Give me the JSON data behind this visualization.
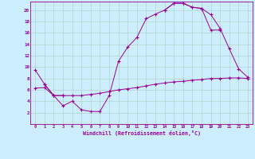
{
  "background_color": "#cceeff",
  "grid_color": "#aaccbb",
  "line_color": "#990099",
  "xlim": [
    -0.5,
    23.5
  ],
  "ylim": [
    0,
    21.5
  ],
  "xlabel": "Windchill (Refroidissement éolien,°C)",
  "xticks": [
    0,
    1,
    2,
    3,
    4,
    5,
    6,
    7,
    8,
    9,
    10,
    11,
    12,
    13,
    14,
    15,
    16,
    17,
    18,
    19,
    20,
    21,
    22,
    23
  ],
  "yticks": [
    2,
    4,
    6,
    8,
    10,
    12,
    14,
    16,
    18,
    20
  ],
  "series1_x": [
    0,
    1,
    2,
    3,
    4,
    5,
    6,
    7,
    8,
    9,
    10,
    11,
    12,
    13,
    14,
    15,
    16,
    17,
    18,
    19,
    20
  ],
  "series1_y": [
    9.5,
    7.0,
    5.0,
    3.2,
    4.0,
    2.5,
    2.2,
    2.2,
    5.0,
    11.0,
    13.5,
    15.2,
    18.5,
    19.3,
    20.0,
    21.2,
    21.2,
    20.5,
    20.3,
    16.5,
    16.5
  ],
  "series2_x": [
    14,
    15,
    16,
    17,
    18,
    19,
    20,
    21,
    22,
    23
  ],
  "series2_y": [
    20.0,
    21.2,
    21.2,
    20.5,
    20.3,
    19.2,
    16.8,
    13.2,
    9.7,
    8.2
  ],
  "series3_x": [
    1,
    2,
    3
  ],
  "series3_y": [
    7.0,
    5.0,
    5.0
  ],
  "series4_x": [
    0,
    1,
    2,
    3,
    4,
    5,
    6,
    7,
    8,
    9,
    10,
    11,
    12,
    13,
    14,
    15,
    16,
    17,
    18,
    19,
    20,
    21,
    22,
    23
  ],
  "series4_y": [
    6.3,
    6.4,
    5.0,
    5.0,
    5.0,
    5.0,
    5.2,
    5.4,
    5.7,
    6.0,
    6.2,
    6.4,
    6.7,
    7.0,
    7.2,
    7.4,
    7.5,
    7.7,
    7.8,
    8.0,
    8.0,
    8.1,
    8.1,
    8.0
  ]
}
